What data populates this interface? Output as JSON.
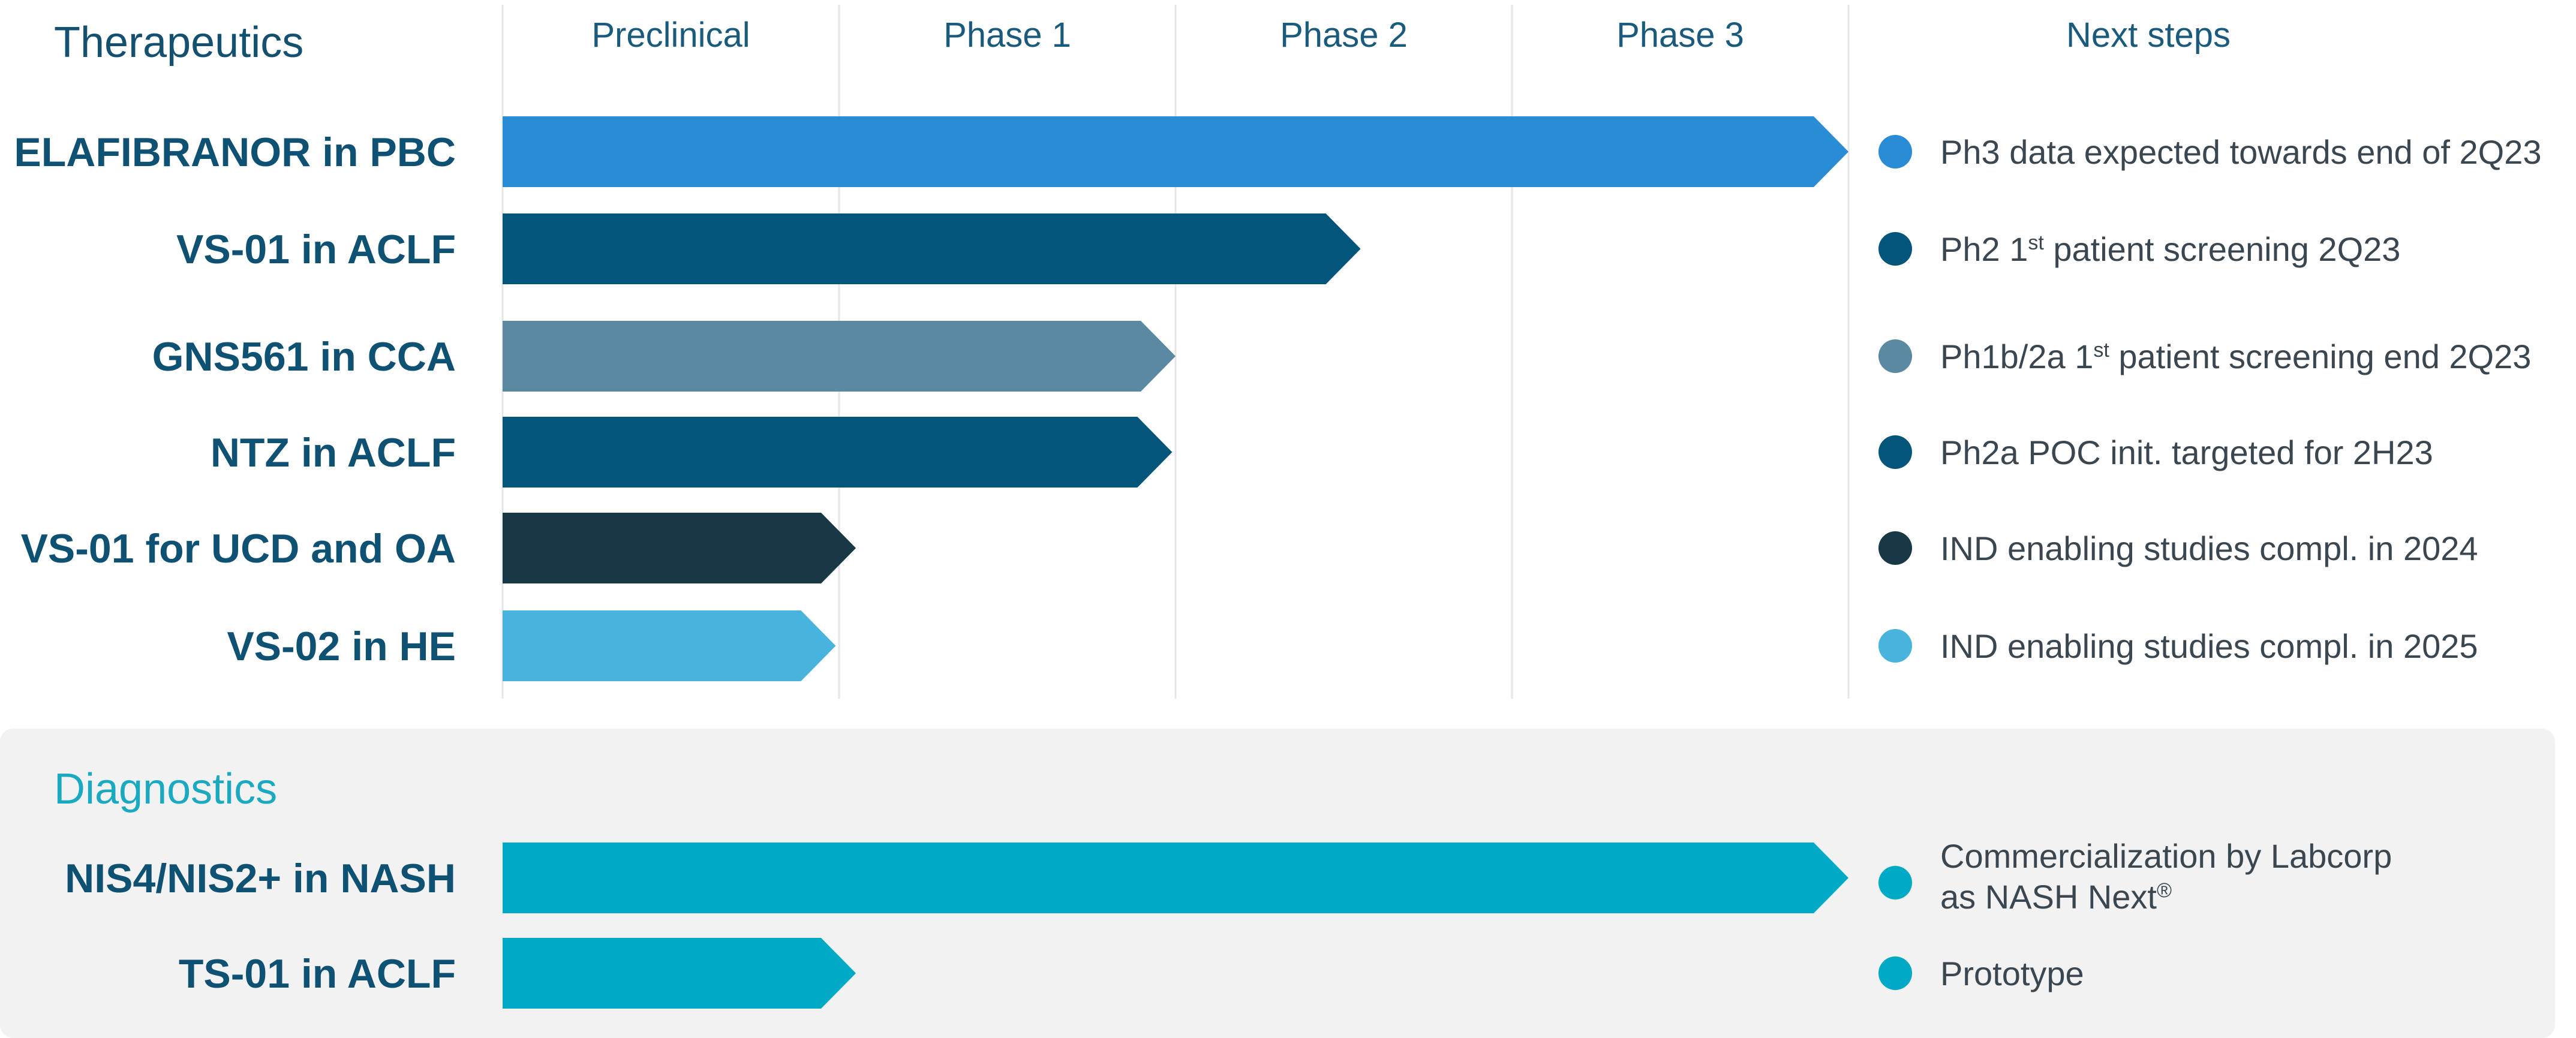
{
  "colors": {
    "heading_therapeutics": "#14506f",
    "heading_diagnostics": "#1ba9c1",
    "label": "#0e5173",
    "grid": "#e4e6e8",
    "panel_bg": "#f2f2f2"
  },
  "chart_data": {
    "type": "bar",
    "stages": [
      "Preclinical",
      "Phase 1",
      "Phase 2",
      "Phase 3"
    ],
    "next_steps_header": "Next steps",
    "xlim": [
      0,
      4
    ],
    "sections": [
      {
        "title": "Therapeutics",
        "rows": [
          {
            "name": "ELAFIBRANOR in PBC",
            "value": 4.0,
            "color": "#2a8cd4",
            "dot_color": "#2a8cd4",
            "next_step": [
              {
                "text": "Ph3 data expected towards end of 2Q23"
              }
            ]
          },
          {
            "name": "VS-01 in ACLF",
            "value": 2.55,
            "color": "#03567a",
            "dot_color": "#03567a",
            "next_step": [
              {
                "text": "Ph2 1"
              },
              {
                "text": "st",
                "sup": true
              },
              {
                "text": " patient screening 2Q23"
              }
            ]
          },
          {
            "name": "GNS561 in CCA",
            "value": 2.0,
            "color": "#5b89a1",
            "dot_color": "#5b89a1",
            "next_step": [
              {
                "text": "Ph1b/2a 1"
              },
              {
                "text": "st",
                "sup": true
              },
              {
                "text": " patient screening end 2Q23"
              }
            ]
          },
          {
            "name": "NTZ in ACLF",
            "value": 1.99,
            "color": "#03567a",
            "dot_color": "#03567a",
            "next_step": [
              {
                "text": "Ph2a POC init. targeted for 2H23"
              }
            ]
          },
          {
            "name": "VS-01 for UCD and OA",
            "value": 1.05,
            "color": "#183846",
            "dot_color": "#183846",
            "next_step": [
              {
                "text": "IND enabling studies compl. in 2024"
              }
            ]
          },
          {
            "name": "VS-02 in HE",
            "value": 0.99,
            "color": "#48b3dc",
            "dot_color": "#48b3dc",
            "next_step": [
              {
                "text": "IND enabling studies compl. in 2025"
              }
            ]
          }
        ]
      },
      {
        "title": "Diagnostics",
        "rows": [
          {
            "name": "NIS4/NIS2+ in NASH",
            "value": 4.0,
            "color": "#00aac5",
            "dot_color": "#00aac5",
            "next_step": [
              {
                "text": "Commercialization by Labcorp"
              },
              {
                "text": "as NASH Next",
                "newline": true
              },
              {
                "text": "®",
                "sup": true
              }
            ]
          },
          {
            "name": "TS-01 in ACLF",
            "value": 1.05,
            "color": "#00aac5",
            "dot_color": "#00aac5",
            "next_step": [
              {
                "text": "Prototype"
              }
            ]
          }
        ]
      }
    ]
  }
}
